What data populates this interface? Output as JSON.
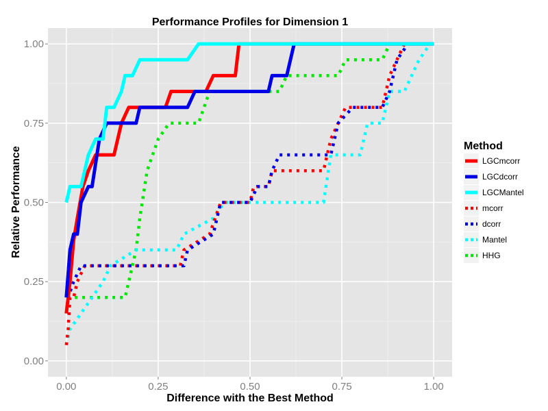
{
  "chart_data": {
    "type": "line",
    "title": "Performance Profiles for Dimension 1",
    "xlabel": "Difference with the Best Method",
    "ylabel": "Relative Performance",
    "xlim": [
      -0.05,
      1.05
    ],
    "ylim": [
      -0.05,
      1.05
    ],
    "x_ticks": [
      0.0,
      0.25,
      0.5,
      0.75,
      1.0
    ],
    "x_tick_labels": [
      "0.00",
      "0.25",
      "0.50",
      "0.75",
      "1.00"
    ],
    "y_ticks": [
      0.0,
      0.25,
      0.5,
      0.75,
      1.0
    ],
    "y_tick_labels": [
      "0.00",
      "0.25",
      "0.50",
      "0.75",
      "1.00"
    ],
    "grid": true,
    "legend": {
      "title": "Method",
      "placement": "right"
    },
    "series": [
      {
        "name": "LGCmcorr",
        "color": "#ff0000",
        "style": "solid",
        "points": [
          [
            0,
            0.15
          ],
          [
            0.01,
            0.25
          ],
          [
            0.02,
            0.38
          ],
          [
            0.03,
            0.45
          ],
          [
            0.045,
            0.55
          ],
          [
            0.06,
            0.6
          ],
          [
            0.08,
            0.65
          ],
          [
            0.13,
            0.65
          ],
          [
            0.15,
            0.75
          ],
          [
            0.17,
            0.8
          ],
          [
            0.27,
            0.8
          ],
          [
            0.285,
            0.85
          ],
          [
            0.38,
            0.85
          ],
          [
            0.4,
            0.9
          ],
          [
            0.46,
            0.9
          ],
          [
            0.47,
            1.0
          ],
          [
            1.0,
            1.0
          ]
        ]
      },
      {
        "name": "LGCdcorr",
        "color": "#0000e6",
        "style": "solid",
        "points": [
          [
            0,
            0.2
          ],
          [
            0.01,
            0.35
          ],
          [
            0.02,
            0.4
          ],
          [
            0.03,
            0.4
          ],
          [
            0.04,
            0.5
          ],
          [
            0.06,
            0.55
          ],
          [
            0.07,
            0.55
          ],
          [
            0.09,
            0.7
          ],
          [
            0.11,
            0.75
          ],
          [
            0.19,
            0.75
          ],
          [
            0.2,
            0.8
          ],
          [
            0.33,
            0.8
          ],
          [
            0.35,
            0.85
          ],
          [
            0.55,
            0.85
          ],
          [
            0.56,
            0.9
          ],
          [
            0.6,
            0.9
          ],
          [
            0.62,
            1.0
          ],
          [
            1.0,
            1.0
          ]
        ]
      },
      {
        "name": "LGCMantel",
        "color": "#00ffff",
        "style": "solid",
        "points": [
          [
            0,
            0.5
          ],
          [
            0.01,
            0.55
          ],
          [
            0.04,
            0.55
          ],
          [
            0.06,
            0.65
          ],
          [
            0.08,
            0.7
          ],
          [
            0.1,
            0.7
          ],
          [
            0.11,
            0.8
          ],
          [
            0.13,
            0.8
          ],
          [
            0.15,
            0.85
          ],
          [
            0.16,
            0.9
          ],
          [
            0.18,
            0.9
          ],
          [
            0.2,
            0.95
          ],
          [
            0.33,
            0.95
          ],
          [
            0.36,
            1.0
          ],
          [
            1.0,
            1.0
          ]
        ]
      },
      {
        "name": "mcorr",
        "color": "#ff0000",
        "style": "dotted",
        "points": [
          [
            0,
            0.05
          ],
          [
            0.005,
            0.1
          ],
          [
            0.01,
            0.2
          ],
          [
            0.02,
            0.2
          ],
          [
            0.03,
            0.25
          ],
          [
            0.05,
            0.3
          ],
          [
            0.31,
            0.3
          ],
          [
            0.32,
            0.35
          ],
          [
            0.39,
            0.4
          ],
          [
            0.42,
            0.5
          ],
          [
            0.5,
            0.5
          ],
          [
            0.51,
            0.55
          ],
          [
            0.55,
            0.55
          ],
          [
            0.56,
            0.6
          ],
          [
            0.7,
            0.6
          ],
          [
            0.72,
            0.7
          ],
          [
            0.74,
            0.75
          ],
          [
            0.76,
            0.8
          ],
          [
            0.86,
            0.8
          ],
          [
            0.88,
            0.9
          ],
          [
            0.9,
            0.95
          ],
          [
            0.92,
            1.0
          ],
          [
            1.0,
            1.0
          ]
        ]
      },
      {
        "name": "dcorr",
        "color": "#0000e6",
        "style": "dotted",
        "points": [
          [
            0,
            0.15
          ],
          [
            0.005,
            0.2
          ],
          [
            0.02,
            0.25
          ],
          [
            0.04,
            0.3
          ],
          [
            0.32,
            0.3
          ],
          [
            0.33,
            0.35
          ],
          [
            0.4,
            0.4
          ],
          [
            0.42,
            0.5
          ],
          [
            0.5,
            0.5
          ],
          [
            0.52,
            0.55
          ],
          [
            0.55,
            0.55
          ],
          [
            0.56,
            0.6
          ],
          [
            0.58,
            0.65
          ],
          [
            0.72,
            0.65
          ],
          [
            0.74,
            0.75
          ],
          [
            0.78,
            0.8
          ],
          [
            0.86,
            0.8
          ],
          [
            0.88,
            0.85
          ],
          [
            0.9,
            0.95
          ],
          [
            0.93,
            1.0
          ],
          [
            1.0,
            1.0
          ]
        ]
      },
      {
        "name": "Mantel",
        "color": "#00ffff",
        "style": "dotted",
        "points": [
          [
            0,
            0.05
          ],
          [
            0.01,
            0.1
          ],
          [
            0.04,
            0.15
          ],
          [
            0.07,
            0.2
          ],
          [
            0.1,
            0.25
          ],
          [
            0.12,
            0.3
          ],
          [
            0.19,
            0.35
          ],
          [
            0.3,
            0.35
          ],
          [
            0.32,
            0.4
          ],
          [
            0.4,
            0.45
          ],
          [
            0.43,
            0.5
          ],
          [
            0.7,
            0.5
          ],
          [
            0.72,
            0.65
          ],
          [
            0.8,
            0.65
          ],
          [
            0.82,
            0.75
          ],
          [
            0.86,
            0.75
          ],
          [
            0.88,
            0.85
          ],
          [
            0.92,
            0.85
          ],
          [
            0.94,
            0.9
          ],
          [
            0.96,
            0.95
          ],
          [
            0.99,
            1.0
          ],
          [
            1.0,
            1.0
          ]
        ]
      },
      {
        "name": "HHG",
        "color": "#00e600",
        "style": "dotted",
        "points": [
          [
            0,
            0.15
          ],
          [
            0.005,
            0.2
          ],
          [
            0.16,
            0.2
          ],
          [
            0.17,
            0.25
          ],
          [
            0.19,
            0.35
          ],
          [
            0.2,
            0.45
          ],
          [
            0.22,
            0.6
          ],
          [
            0.25,
            0.7
          ],
          [
            0.28,
            0.75
          ],
          [
            0.36,
            0.75
          ],
          [
            0.39,
            0.85
          ],
          [
            0.58,
            0.85
          ],
          [
            0.6,
            0.9
          ],
          [
            0.74,
            0.9
          ],
          [
            0.76,
            0.95
          ],
          [
            0.86,
            0.95
          ],
          [
            0.88,
            1.0
          ],
          [
            1.0,
            1.0
          ]
        ]
      }
    ]
  }
}
